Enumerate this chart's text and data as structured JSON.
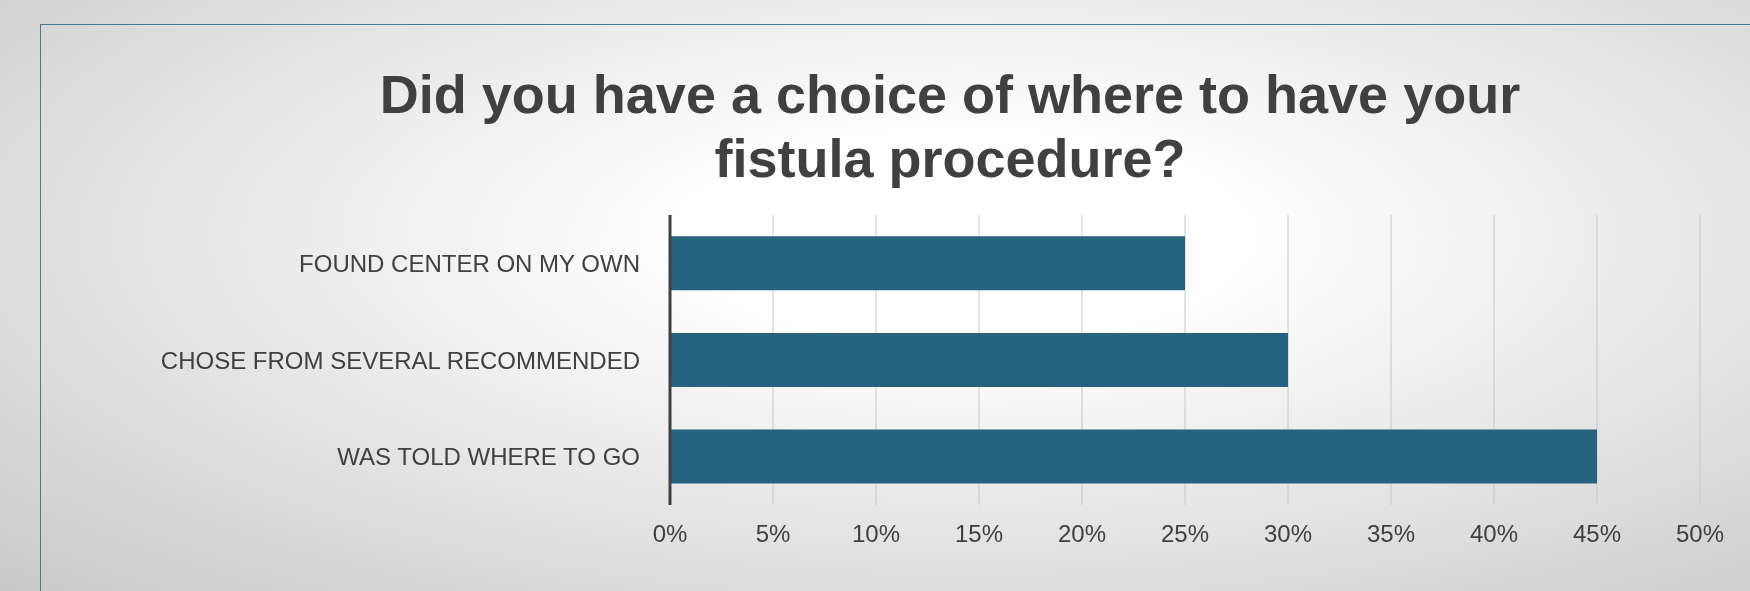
{
  "chart_data": {
    "type": "bar",
    "orientation": "horizontal",
    "title": "Did you have a choice of where to have your fistula procedure?",
    "categories": [
      "FOUND CENTER ON MY OWN",
      "CHOSE FROM SEVERAL RECOMMENDED",
      "WAS TOLD WHERE TO GO"
    ],
    "values": [
      25,
      30,
      45
    ],
    "color": "#26637f",
    "xlim": [
      0,
      50
    ],
    "xticks": [
      {
        "value": 0,
        "label": "0%"
      },
      {
        "value": 5,
        "label": "5%"
      },
      {
        "value": 10,
        "label": "10%"
      },
      {
        "value": 15,
        "label": "15%"
      },
      {
        "value": 20,
        "label": "20%"
      },
      {
        "value": 25,
        "label": "25%"
      },
      {
        "value": 30,
        "label": "30%"
      },
      {
        "value": 35,
        "label": "35%"
      },
      {
        "value": 40,
        "label": "40%"
      },
      {
        "value": 45,
        "label": "45%"
      },
      {
        "value": 50,
        "label": "50%"
      }
    ],
    "grid": "x"
  }
}
